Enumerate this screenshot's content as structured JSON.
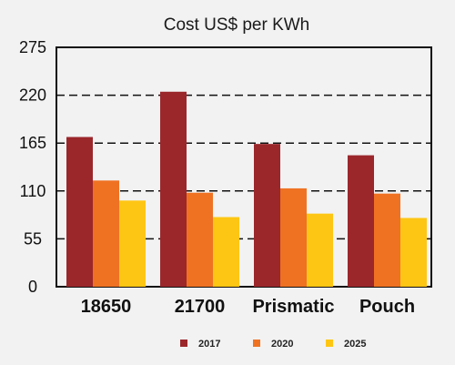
{
  "chart_data": {
    "type": "bar",
    "title": "Cost US$ per KWh",
    "xlabel": "",
    "ylabel": "",
    "categories": [
      "18650",
      "21700",
      "Prismatic",
      "Pouch"
    ],
    "series": [
      {
        "name": "2017",
        "color": "#9b272b",
        "values": [
          172,
          224,
          164,
          151
        ]
      },
      {
        "name": "2020",
        "color": "#ef7223",
        "values": [
          122,
          108,
          113,
          107
        ]
      },
      {
        "name": "2025",
        "color": "#fec614",
        "values": [
          99,
          80,
          84,
          79
        ]
      }
    ],
    "ylim": [
      0,
      275
    ],
    "yticks": [
      "0",
      "55",
      "110",
      "165",
      "220",
      "275"
    ],
    "grid": "horizontal dashed",
    "legend": "bottom"
  }
}
